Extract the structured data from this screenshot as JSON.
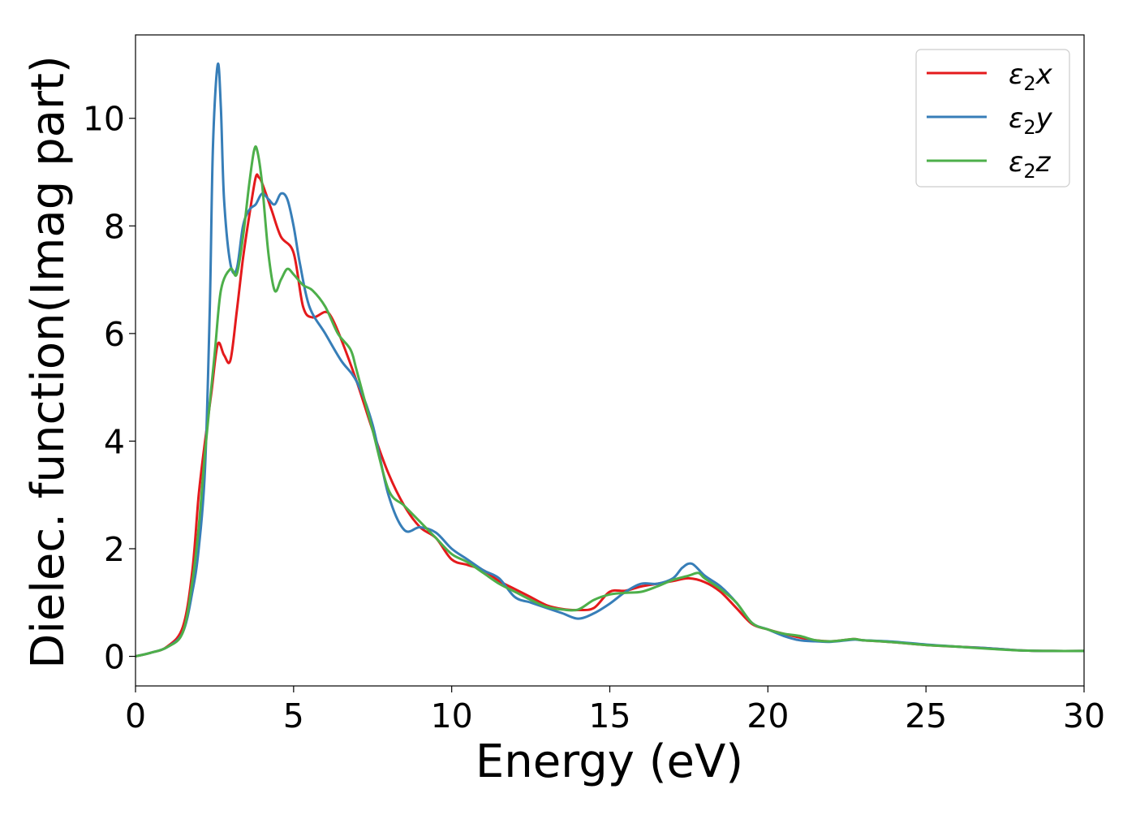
{
  "chart_data": {
    "type": "line",
    "title": "",
    "xlabel": "Energy (eV)",
    "ylabel": "Dielec. function(Imag part)",
    "xlim": [
      0,
      30
    ],
    "ylim": [
      -0.55,
      11.55
    ],
    "xticks": [
      0,
      5,
      10,
      15,
      20,
      25,
      30
    ],
    "yticks": [
      0,
      2,
      4,
      6,
      8,
      10
    ],
    "grid": false,
    "legend_position": "top-right",
    "series": [
      {
        "name": "x",
        "color": "#e41a1c",
        "x": [
          0,
          0.5,
          1.0,
          1.5,
          1.8,
          2.0,
          2.2,
          2.4,
          2.6,
          2.8,
          3.0,
          3.2,
          3.4,
          3.6,
          3.8,
          3.9,
          4.0,
          4.3,
          4.6,
          5.0,
          5.3,
          5.6,
          6.0,
          6.2,
          6.5,
          7.0,
          7.5,
          8.0,
          8.5,
          9.0,
          9.5,
          10.0,
          10.5,
          11.0,
          11.5,
          12.0,
          12.5,
          13.0,
          13.5,
          14.0,
          14.5,
          15.0,
          15.5,
          16.0,
          16.5,
          17.0,
          17.5,
          18.0,
          18.5,
          19.0,
          19.5,
          20.0,
          20.5,
          21.0,
          21.5,
          22.0,
          22.7,
          23.0,
          24.0,
          25.0,
          26.0,
          27.0,
          28.0,
          29.0,
          30.0
        ],
        "y": [
          0,
          0.07,
          0.18,
          0.55,
          1.6,
          3.0,
          4.0,
          4.9,
          5.8,
          5.6,
          5.5,
          6.4,
          7.4,
          8.2,
          8.9,
          8.9,
          8.8,
          8.3,
          7.8,
          7.5,
          6.5,
          6.3,
          6.4,
          6.3,
          5.9,
          5.1,
          4.2,
          3.4,
          2.8,
          2.4,
          2.2,
          1.8,
          1.7,
          1.6,
          1.4,
          1.25,
          1.1,
          0.95,
          0.88,
          0.86,
          0.9,
          1.2,
          1.22,
          1.3,
          1.35,
          1.4,
          1.45,
          1.38,
          1.2,
          0.9,
          0.6,
          0.5,
          0.42,
          0.35,
          0.3,
          0.28,
          0.32,
          0.3,
          0.26,
          0.21,
          0.18,
          0.15,
          0.11,
          0.1,
          0.1
        ]
      },
      {
        "name": "y",
        "color": "#377eb8",
        "x": [
          0,
          0.5,
          1.0,
          1.5,
          1.8,
          2.0,
          2.2,
          2.35,
          2.45,
          2.6,
          2.7,
          2.8,
          3.0,
          3.2,
          3.4,
          3.6,
          3.8,
          4.0,
          4.2,
          4.4,
          4.6,
          4.8,
          5.0,
          5.2,
          5.5,
          6.0,
          6.5,
          7.0,
          7.5,
          8.0,
          8.5,
          9.0,
          9.5,
          10.0,
          10.5,
          11.0,
          11.5,
          12.0,
          12.5,
          13.0,
          13.5,
          14.0,
          14.5,
          15.0,
          15.5,
          16.0,
          16.5,
          17.0,
          17.3,
          17.6,
          18.0,
          18.5,
          19.0,
          19.5,
          20.0,
          20.5,
          21.0,
          21.5,
          22.0,
          22.7,
          23.0,
          24.0,
          25.0,
          26.0,
          27.0,
          28.0,
          29.0,
          30.0
        ],
        "y": [
          0,
          0.07,
          0.17,
          0.45,
          1.2,
          2.0,
          3.5,
          6.5,
          9.5,
          11.0,
          10.2,
          8.5,
          7.3,
          7.2,
          8.0,
          8.3,
          8.4,
          8.6,
          8.5,
          8.4,
          8.6,
          8.5,
          8.0,
          7.3,
          6.5,
          6.0,
          5.5,
          5.1,
          4.3,
          3.0,
          2.35,
          2.4,
          2.3,
          2.0,
          1.8,
          1.6,
          1.45,
          1.1,
          1.0,
          0.9,
          0.8,
          0.7,
          0.8,
          0.98,
          1.2,
          1.35,
          1.35,
          1.45,
          1.65,
          1.72,
          1.5,
          1.3,
          1.0,
          0.62,
          0.5,
          0.38,
          0.3,
          0.28,
          0.27,
          0.31,
          0.3,
          0.27,
          0.22,
          0.18,
          0.15,
          0.11,
          0.1,
          0.1
        ]
      },
      {
        "name": "z",
        "color": "#4daf4a",
        "x": [
          0,
          0.5,
          1.0,
          1.5,
          1.8,
          2.0,
          2.2,
          2.5,
          2.7,
          3.0,
          3.2,
          3.4,
          3.6,
          3.75,
          3.85,
          4.0,
          4.2,
          4.4,
          4.6,
          4.8,
          5.0,
          5.3,
          5.6,
          6.0,
          6.4,
          6.8,
          7.0,
          7.5,
          8.0,
          8.5,
          9.0,
          9.5,
          10.0,
          10.5,
          11.0,
          11.5,
          12.0,
          12.5,
          13.0,
          13.5,
          14.0,
          14.5,
          15.0,
          15.5,
          16.0,
          16.5,
          17.0,
          17.5,
          17.8,
          18.0,
          18.5,
          19.0,
          19.5,
          20.0,
          20.5,
          21.0,
          21.5,
          22.0,
          22.7,
          23.0,
          24.0,
          25.0,
          26.0,
          27.0,
          28.0,
          29.0,
          30.0
        ],
        "y": [
          0,
          0.07,
          0.17,
          0.45,
          1.4,
          2.4,
          3.8,
          5.6,
          6.8,
          7.2,
          7.1,
          7.8,
          8.8,
          9.4,
          9.4,
          8.8,
          7.5,
          6.8,
          7.0,
          7.2,
          7.1,
          6.9,
          6.8,
          6.5,
          6.0,
          5.7,
          5.3,
          4.2,
          3.1,
          2.8,
          2.5,
          2.2,
          1.9,
          1.75,
          1.55,
          1.35,
          1.2,
          1.05,
          0.92,
          0.87,
          0.87,
          1.05,
          1.15,
          1.18,
          1.2,
          1.3,
          1.42,
          1.5,
          1.55,
          1.45,
          1.25,
          1.0,
          0.62,
          0.5,
          0.42,
          0.38,
          0.3,
          0.28,
          0.32,
          0.3,
          0.26,
          0.21,
          0.18,
          0.14,
          0.11,
          0.1,
          0.1
        ]
      }
    ]
  }
}
